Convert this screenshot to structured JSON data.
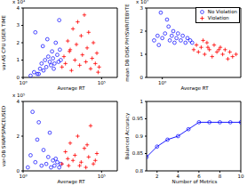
{
  "chart_data": [
    {
      "type": "scatter",
      "x_label": "Average RT",
      "y_label": "var-AS CPU USER TIME",
      "annotations": [
        "x 10⁴"
      ],
      "log": "x",
      "grid": false,
      "xlim": [
        1,
        1000000
      ],
      "xticks": [
        {
          "value": 1,
          "label": "10⁰"
        },
        {
          "value": 100000,
          "label": "10⁵"
        }
      ],
      "ylim": [
        0,
        4
      ],
      "yticks": [
        0,
        1,
        2,
        3,
        4
      ],
      "series": [
        {
          "name": "No Violation",
          "color": "#0000ff",
          "marker": "circle",
          "x": [
            3,
            5,
            8,
            12,
            15,
            20,
            25,
            30,
            40,
            50,
            60,
            70,
            80,
            100,
            120,
            150,
            180,
            200,
            220,
            250,
            6,
            10,
            18,
            35,
            90
          ],
          "values": [
            0.1,
            0.3,
            0.2,
            0.5,
            0.8,
            0.4,
            1.0,
            0.6,
            1.2,
            0.9,
            0.7,
            1.5,
            1.1,
            0.8,
            2.0,
            1.3,
            0.9,
            3.3,
            1.6,
            1.0,
            2.6,
            0.2,
            1.8,
            2.2,
            0.5
          ]
        },
        {
          "name": "Violation",
          "color": "#ff0000",
          "marker": "plus",
          "x": [
            300,
            400,
            500,
            700,
            900,
            1200,
            1500,
            2000,
            2500,
            3000,
            4000,
            5000,
            6000,
            8000,
            10000,
            12000,
            15000,
            20000,
            25000,
            30000,
            40000,
            50000,
            60000,
            70000,
            1000
          ],
          "values": [
            0.6,
            1.2,
            0.8,
            2.1,
            1.5,
            0.4,
            2.8,
            1.0,
            1.9,
            3.2,
            0.7,
            2.4,
            1.3,
            3.6,
            0.9,
            1.7,
            2.6,
            0.5,
            1.1,
            2.0,
            0.8,
            1.4,
            0.3,
            0.6,
            1.6
          ]
        }
      ]
    },
    {
      "type": "scatter",
      "x_label": "Average RT",
      "y_label": "mean DB DISK PHYSWRITEBYTE",
      "annotations": [
        "x 10⁷"
      ],
      "log": "x",
      "grid": false,
      "legend": "top right",
      "xlim": [
        0.1,
        100000
      ],
      "xticks": [
        {
          "value": 1,
          "label": "10⁰"
        }
      ],
      "ylim": [
        0,
        3
      ],
      "yticks": [
        0,
        1,
        2,
        3
      ],
      "series": [
        {
          "name": "No Violation",
          "color": "#0000ff",
          "marker": "circle",
          "x": [
            0.3,
            0.5,
            0.8,
            1,
            1.5,
            2,
            3,
            4,
            5,
            6,
            8,
            10,
            15,
            20,
            30,
            40,
            60,
            80,
            2.5,
            0.6
          ],
          "values": [
            1.6,
            1.8,
            2.8,
            1.7,
            1.9,
            2.5,
            1.6,
            1.8,
            2.0,
            1.5,
            1.7,
            1.9,
            1.6,
            1.8,
            1.5,
            1.7,
            1.6,
            1.5,
            2.2,
            1.4
          ]
        },
        {
          "name": "Violation",
          "color": "#ff0000",
          "marker": "plus",
          "x": [
            100,
            150,
            200,
            300,
            500,
            700,
            1000,
            1500,
            2000,
            3000,
            5000,
            7000,
            10000,
            15000,
            20000,
            30000,
            50000,
            400,
            800,
            4000
          ],
          "values": [
            1.2,
            1.4,
            1.1,
            1.3,
            1.0,
            1.5,
            1.2,
            0.9,
            1.4,
            1.1,
            1.3,
            1.0,
            1.2,
            0.8,
            1.1,
            0.9,
            1.0,
            1.6,
            1.3,
            1.2
          ]
        }
      ]
    },
    {
      "type": "scatter",
      "x_label": "Average RT",
      "y_label": "var-DB SWAPSPACEUSED",
      "annotations": [
        "x 10⁵"
      ],
      "log": "x",
      "grid": false,
      "xlim": [
        1,
        1000000
      ],
      "xticks": [
        {
          "value": 1,
          "label": "10⁰"
        },
        {
          "value": 100000,
          "label": "10⁵"
        }
      ],
      "ylim": [
        0,
        4
      ],
      "yticks": [
        0,
        2,
        4
      ],
      "series": [
        {
          "name": "No Violation",
          "color": "#0000ff",
          "marker": "circle",
          "x": [
            2,
            4,
            6,
            10,
            15,
            20,
            30,
            40,
            60,
            80,
            100,
            150,
            200,
            250,
            8,
            3,
            50,
            120
          ],
          "values": [
            0.2,
            3.4,
            0.5,
            2.8,
            0.3,
            1.2,
            0.4,
            0.8,
            0.2,
            0.6,
            0.3,
            0.5,
            0.2,
            0.4,
            1.8,
            0.9,
            2.2,
            0.7
          ]
        },
        {
          "name": "Violation",
          "color": "#ff0000",
          "marker": "plus",
          "x": [
            300,
            500,
            800,
            1000,
            1500,
            2000,
            3000,
            5000,
            8000,
            10000,
            15000,
            20000,
            30000,
            50000,
            700,
            4000,
            12000,
            40000
          ],
          "values": [
            0.4,
            1.1,
            0.3,
            1.6,
            0.6,
            0.9,
            2.0,
            0.5,
            1.3,
            0.2,
            0.8,
            2.6,
            0.4,
            1.0,
            0.7,
            0.3,
            1.5,
            0.6
          ]
        }
      ]
    },
    {
      "type": "line",
      "x_label": "Number of Metrics",
      "y_label": "Balanced Accuracy",
      "grid": false,
      "xlim": [
        1,
        10
      ],
      "xticks": [
        2,
        4,
        6,
        8,
        10
      ],
      "ylim": [
        0.8,
        1
      ],
      "yticks": [
        0.8,
        0.85,
        0.9,
        0.95,
        1
      ],
      "series": [
        {
          "color": "#0000ff",
          "marker": "circle",
          "line_style": "solid",
          "x": [
            1,
            2,
            3,
            4,
            5,
            6,
            7,
            8,
            9,
            10
          ],
          "values": [
            0.84,
            0.87,
            0.89,
            0.9,
            0.92,
            0.94,
            0.94,
            0.94,
            0.94,
            0.94
          ]
        }
      ]
    }
  ]
}
